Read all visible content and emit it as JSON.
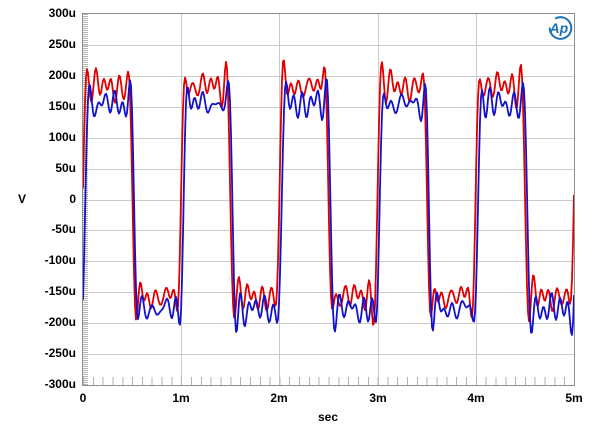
{
  "logo": {
    "text": "Ap",
    "color": "#1a72b8"
  },
  "chart_data": {
    "type": "line",
    "title": "",
    "xlabel": "sec",
    "ylabel": "V",
    "x_unit": "ms",
    "y_unit": "uV",
    "xlim_ms": [
      0,
      5
    ],
    "ylim_uV": [
      -300,
      300
    ],
    "grid": true,
    "legend_position": "none",
    "x_major_ticks": [
      {
        "ms": 0,
        "label": "0"
      },
      {
        "ms": 1,
        "label": "1m"
      },
      {
        "ms": 2,
        "label": "2m"
      },
      {
        "ms": 3,
        "label": "3m"
      },
      {
        "ms": 4,
        "label": "4m"
      },
      {
        "ms": 5,
        "label": "5m"
      }
    ],
    "x_minor_tick_ms": 0.1,
    "y_major_ticks": [
      {
        "uV": 300,
        "label": "300u"
      },
      {
        "uV": 250,
        "label": "250u"
      },
      {
        "uV": 200,
        "label": "200u"
      },
      {
        "uV": 150,
        "label": "150u"
      },
      {
        "uV": 100,
        "label": "100u"
      },
      {
        "uV": 50,
        "label": "50u"
      },
      {
        "uV": 0,
        "label": "0"
      },
      {
        "uV": -50,
        "label": "-50u"
      },
      {
        "uV": -100,
        "label": "-100u"
      },
      {
        "uV": -150,
        "label": "-150u"
      },
      {
        "uV": -200,
        "label": "-200u"
      },
      {
        "uV": -250,
        "label": "-250u"
      },
      {
        "uV": -300,
        "label": "-300u"
      }
    ],
    "y_minor_tick_uV": 2,
    "grid_color": "#cbcbcb",
    "border_color": "#8e8e8e",
    "series": [
      {
        "name": "red-trace",
        "color": "#e10000",
        "waveform": "bandlimited_square",
        "fundamental_hz": 1000,
        "cycles_shown": 5,
        "odd_harmonics": [
          1,
          3,
          5,
          7,
          9,
          11
        ],
        "amplitude_uV": 170,
        "dc_offset_uV": 13,
        "delay_ms": 0,
        "ripple_components": [
          {
            "freq_hz": 8300,
            "amp_uV": 9,
            "phase_rad": 0.8
          },
          {
            "freq_hz": 13700,
            "amp_uV": 6,
            "phase_rad": 2.3
          },
          {
            "freq_hz": 2700,
            "amp_uV": 5,
            "phase_rad": 5.1
          }
        ],
        "observed_peak_uV": 240,
        "observed_top_plateau_uV": [
          150,
          215
        ],
        "observed_bottom_plateau_uV": [
          -195,
          -120
        ]
      },
      {
        "name": "blue-trace",
        "color": "#1212cc",
        "waveform": "bandlimited_square",
        "fundamental_hz": 1000,
        "cycles_shown": 5,
        "odd_harmonics": [
          1,
          3,
          5,
          7,
          9,
          11
        ],
        "amplitude_uV": 166,
        "dc_offset_uV": -11,
        "delay_ms": 0.022,
        "ripple_components": [
          {
            "freq_hz": 7900,
            "amp_uV": 9,
            "phase_rad": 3.9
          },
          {
            "freq_hz": 12600,
            "amp_uV": 6,
            "phase_rad": 0.6
          },
          {
            "freq_hz": 3300,
            "amp_uV": 5,
            "phase_rad": 2.4
          }
        ],
        "observed_peak_uV": 215,
        "observed_top_plateau_uV": [
          130,
          200
        ],
        "observed_bottom_plateau_uV": [
          -205,
          -130
        ]
      }
    ]
  }
}
